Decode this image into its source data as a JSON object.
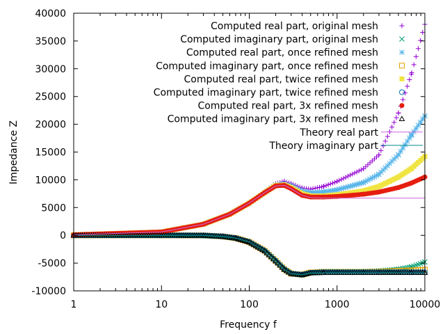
{
  "chart_data": {
    "type": "scatter",
    "title": "",
    "xlabel": "Frequency f",
    "ylabel": "Impedance Z",
    "xscale": "log",
    "xlim": [
      1,
      10000
    ],
    "ylim": [
      -10000,
      40000
    ],
    "x_ticks": [
      "1",
      "10",
      "100",
      "1000",
      "10000"
    ],
    "y_ticks": [
      "-10000",
      "-5000",
      "0",
      "5000",
      "10000",
      "15000",
      "20000",
      "25000",
      "30000",
      "35000",
      "40000"
    ],
    "grid": false,
    "legend_position": "top-right",
    "series": [
      {
        "name": "Computed real part, original mesh",
        "marker": "plus",
        "color": "#9400d3",
        "x": [
          1,
          10,
          30,
          60,
          100,
          150,
          200,
          250,
          300,
          400,
          500,
          700,
          1000,
          2000,
          3000,
          5000,
          7000,
          10000
        ],
        "y": [
          100,
          600,
          2000,
          3800,
          5800,
          7800,
          9300,
          9700,
          9300,
          8500,
          8300,
          8800,
          9700,
          12000,
          14500,
          22000,
          29000,
          38000
        ]
      },
      {
        "name": "Computed imaginary part, original mesh",
        "marker": "cross",
        "color": "#009e73",
        "x": [
          1,
          10,
          30,
          50,
          70,
          100,
          150,
          200,
          250,
          300,
          400,
          500,
          700,
          1000,
          2000,
          3000,
          5000,
          7000,
          10000
        ],
        "y": [
          0,
          0,
          -20,
          -200,
          -500,
          -1200,
          -2800,
          -4600,
          -6100,
          -6900,
          -7100,
          -6700,
          -6500,
          -6500,
          -6500,
          -6400,
          -6100,
          -5700,
          -4800
        ]
      },
      {
        "name": "Computed real part, once refined mesh",
        "marker": "star",
        "color": "#56b4e9",
        "x": [
          1,
          10,
          30,
          60,
          100,
          150,
          200,
          250,
          300,
          400,
          500,
          700,
          1000,
          2000,
          3000,
          5000,
          7000,
          10000
        ],
        "y": [
          100,
          600,
          2000,
          3800,
          5800,
          7700,
          9100,
          9300,
          8900,
          8000,
          7700,
          7800,
          8200,
          9500,
          11000,
          14500,
          18000,
          21500
        ]
      },
      {
        "name": "Computed imaginary part, once refined mesh",
        "marker": "square-open",
        "color": "#e69f00",
        "x": [
          1,
          10,
          30,
          50,
          70,
          100,
          150,
          200,
          250,
          300,
          400,
          500,
          700,
          1000,
          2000,
          3000,
          5000,
          7000,
          10000
        ],
        "y": [
          0,
          0,
          -20,
          -200,
          -500,
          -1200,
          -2800,
          -4600,
          -6100,
          -6900,
          -7100,
          -6700,
          -6600,
          -6600,
          -6600,
          -6550,
          -6400,
          -6300,
          -6200
        ]
      },
      {
        "name": "Computed real part, twice refined mesh",
        "marker": "square-filled",
        "color": "#f0e442",
        "x": [
          1,
          10,
          30,
          60,
          100,
          150,
          200,
          250,
          300,
          400,
          500,
          700,
          1000,
          2000,
          3000,
          5000,
          7000,
          10000
        ],
        "y": [
          100,
          600,
          2000,
          3800,
          5800,
          7700,
          9000,
          9100,
          8600,
          7500,
          7100,
          7100,
          7300,
          8000,
          8800,
          10500,
          12000,
          14200
        ]
      },
      {
        "name": "Computed imaginary part, twice refined mesh",
        "marker": "circle-open",
        "color": "#0072b2",
        "x": [
          1,
          10,
          30,
          50,
          70,
          100,
          150,
          200,
          250,
          300,
          400,
          500,
          700,
          1000,
          2000,
          3000,
          5000,
          7000,
          10000
        ],
        "y": [
          0,
          0,
          -20,
          -200,
          -500,
          -1200,
          -2800,
          -4600,
          -6100,
          -6900,
          -7100,
          -6750,
          -6650,
          -6650,
          -6650,
          -6650,
          -6650,
          -6650,
          -6650
        ]
      },
      {
        "name": "Computed real part, 3x refined mesh",
        "marker": "circle-filled",
        "color": "#e51e10",
        "x": [
          1,
          10,
          30,
          60,
          100,
          150,
          200,
          250,
          300,
          400,
          500,
          700,
          1000,
          2000,
          3000,
          5000,
          7000,
          10000
        ],
        "y": [
          100,
          600,
          2000,
          3800,
          5800,
          7700,
          8900,
          9000,
          8400,
          7200,
          6900,
          6900,
          7000,
          7400,
          7800,
          8600,
          9400,
          10500
        ]
      },
      {
        "name": "Computed imaginary part, 3x refined mesh",
        "marker": "triangle-open",
        "color": "#000000",
        "x": [
          1,
          10,
          30,
          50,
          70,
          100,
          150,
          200,
          250,
          300,
          400,
          500,
          700,
          1000,
          2000,
          3000,
          5000,
          7000,
          10000
        ],
        "y": [
          0,
          0,
          -20,
          -200,
          -500,
          -1200,
          -2800,
          -4600,
          -6100,
          -6900,
          -7100,
          -6750,
          -6700,
          -6700,
          -6700,
          -6700,
          -6700,
          -6700,
          -6700
        ]
      },
      {
        "name": "Theory real part",
        "marker": "line",
        "color": "#cc66dd",
        "x": [
          1,
          10,
          30,
          60,
          100,
          150,
          200,
          250,
          300,
          400,
          500,
          700,
          1000,
          2000,
          5000,
          10000
        ],
        "y": [
          100,
          600,
          2000,
          3800,
          5800,
          7700,
          8900,
          9000,
          8400,
          7200,
          6800,
          6700,
          6700,
          6700,
          6700,
          6700
        ]
      },
      {
        "name": "Theory imaginary part",
        "marker": "line",
        "color": "#008b8b",
        "x": [
          1,
          10,
          30,
          50,
          70,
          100,
          150,
          200,
          250,
          300,
          400,
          500,
          700,
          1000,
          2000,
          5000,
          10000
        ],
        "y": [
          0,
          0,
          -20,
          -200,
          -500,
          -1200,
          -2800,
          -4600,
          -6100,
          -6900,
          -7100,
          -6800,
          -6750,
          -6750,
          -6750,
          -6750,
          -6750
        ]
      }
    ]
  }
}
